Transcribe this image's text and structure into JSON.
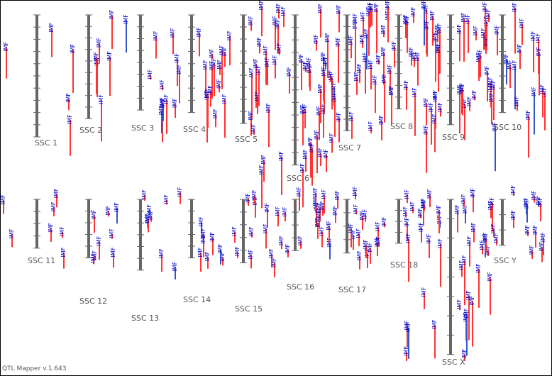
{
  "app": {
    "footer": "QTL Mapper v.1.643"
  },
  "colors": {
    "chromosome": "#666666",
    "qtl": "#ff3333",
    "qtl_alt": "#3355cc",
    "trait_text": "#0000cc",
    "label_text": "#555555"
  },
  "chromosomes": [
    {
      "name": "SSC 1",
      "length": 100,
      "qtl_count": 3
    },
    {
      "name": "SSC 2",
      "length": 85,
      "qtl_count": 6
    },
    {
      "name": "SSC 3",
      "length": 78,
      "qtl_count": 9
    },
    {
      "name": "SSC 4",
      "length": 80,
      "qtl_count": 14
    },
    {
      "name": "SSC 5",
      "length": 89,
      "qtl_count": 18
    },
    {
      "name": "SSC 6",
      "length": 123,
      "qtl_count": 30
    },
    {
      "name": "SSC 7",
      "length": 95,
      "qtl_count": 30
    },
    {
      "name": "SSC 8",
      "length": 77,
      "qtl_count": 24
    },
    {
      "name": "SSC 9",
      "length": 90,
      "qtl_count": 24
    },
    {
      "name": "SSC 10",
      "length": 80,
      "qtl_count": 22
    },
    {
      "name": "SSC 11",
      "length": 40,
      "qtl_count": 4
    },
    {
      "name": "SSC 12",
      "length": 48,
      "qtl_count": 8
    },
    {
      "name": "SSC 13",
      "length": 58,
      "qtl_count": 8
    },
    {
      "name": "SSC 14",
      "length": 48,
      "qtl_count": 10
    },
    {
      "name": "SSC 15",
      "length": 52,
      "qtl_count": 12
    },
    {
      "name": "SSC 16",
      "length": 42,
      "qtl_count": 14
    },
    {
      "name": "SSC 17",
      "length": 44,
      "qtl_count": 16
    },
    {
      "name": "SSC 18",
      "length": 36,
      "qtl_count": 14
    },
    {
      "name": "SSC X",
      "length": 81,
      "qtl_count": 28
    },
    {
      "name": "SSC Y",
      "length": 24,
      "qtl_count": 18
    }
  ],
  "qtl_trait": "IMF"
}
